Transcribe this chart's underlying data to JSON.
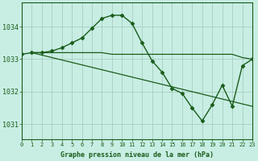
{
  "series_main": {
    "x": [
      0,
      1,
      2,
      3,
      4,
      5,
      6,
      7,
      8,
      9,
      10,
      11,
      12,
      13,
      14,
      15,
      16,
      17,
      18,
      19,
      20,
      21,
      22,
      23
    ],
    "y": [
      1033.15,
      1033.2,
      1033.2,
      1033.25,
      1033.35,
      1033.5,
      1033.65,
      1033.95,
      1034.25,
      1034.35,
      1034.35,
      1034.1,
      1033.5,
      1032.95,
      1032.6,
      1032.1,
      1031.95,
      1031.5,
      1031.1,
      1031.6,
      1032.2,
      1031.55,
      1032.8,
      1033.0
    ]
  },
  "series_flat": {
    "x": [
      1,
      2,
      3,
      4,
      5,
      6,
      7,
      8,
      9,
      10,
      11,
      12,
      13,
      14,
      15,
      16,
      17,
      18,
      19,
      20,
      21,
      22,
      23
    ],
    "y": [
      1033.2,
      1033.2,
      1033.2,
      1033.2,
      1033.2,
      1033.2,
      1033.2,
      1033.2,
      1033.15,
      1033.15,
      1033.15,
      1033.15,
      1033.15,
      1033.15,
      1033.15,
      1033.15,
      1033.15,
      1033.15,
      1033.15,
      1033.15,
      1033.15,
      1033.05,
      1033.0
    ]
  },
  "series_diag": {
    "x": [
      1,
      23
    ],
    "y": [
      1033.2,
      1031.55
    ]
  },
  "xlim": [
    0,
    23
  ],
  "ylim": [
    1030.55,
    1034.75
  ],
  "yticks": [
    1031,
    1032,
    1033,
    1034
  ],
  "xticks": [
    0,
    1,
    2,
    3,
    4,
    5,
    6,
    7,
    8,
    9,
    10,
    11,
    12,
    13,
    14,
    15,
    16,
    17,
    18,
    19,
    20,
    21,
    22,
    23
  ],
  "xlabel": "Graphe pression niveau de la mer (hPa)",
  "background_color": "#c8eee4",
  "grid_color": "#a0c8b8",
  "line_color": "#1a5c1a",
  "text_color": "#1a5c1a",
  "marker": "D",
  "markersize": 2.5,
  "linewidth_main": 1.0,
  "linewidth_other": 0.9,
  "tick_fontsize": 5,
  "label_fontsize": 6.0
}
